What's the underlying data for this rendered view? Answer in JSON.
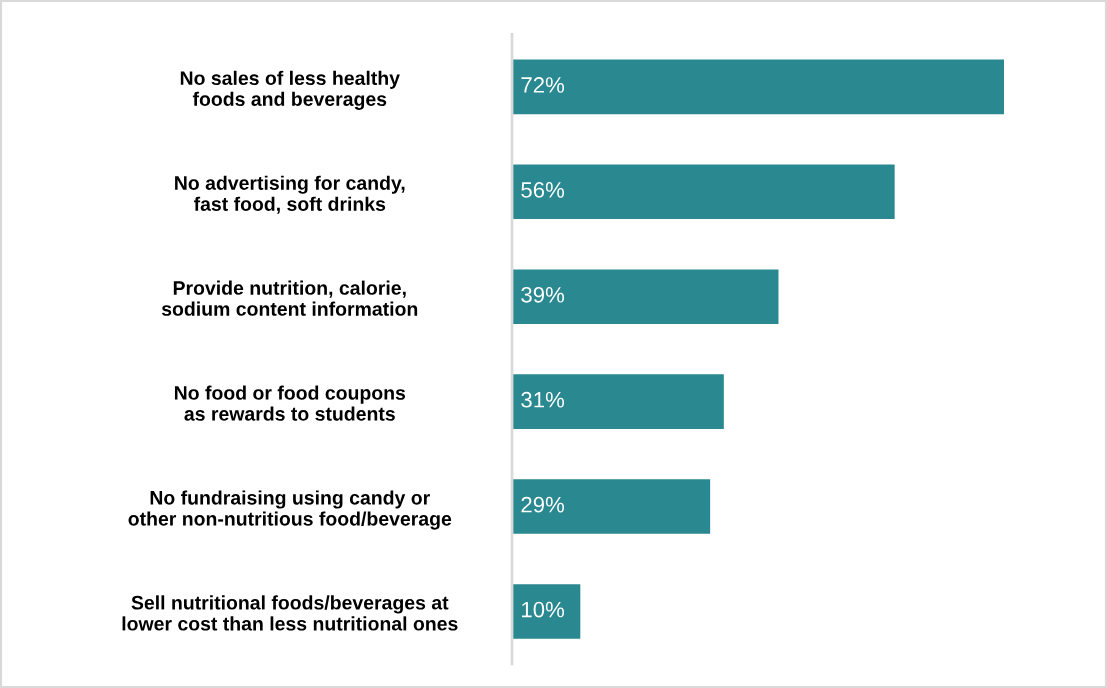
{
  "chart_data": {
    "type": "bar",
    "orientation": "horizontal",
    "color": "#2a8890",
    "grid": false,
    "categories": [
      "No sales of less healthy foods and beverages",
      "No advertising for candy, fast food, soft drinks",
      "Provide nutrition, calorie, sodium content information",
      "No food or food coupons as rewards to students",
      "No fundraising using candy or other non-nutritious food/beverage",
      "Sell nutritional foods/beverages at lower cost than less nutritional ones"
    ],
    "values": [
      72,
      56,
      39,
      31,
      29,
      10
    ],
    "value_labels": [
      "72%",
      "56%",
      "39%",
      "31%",
      "29%",
      "10%"
    ]
  }
}
